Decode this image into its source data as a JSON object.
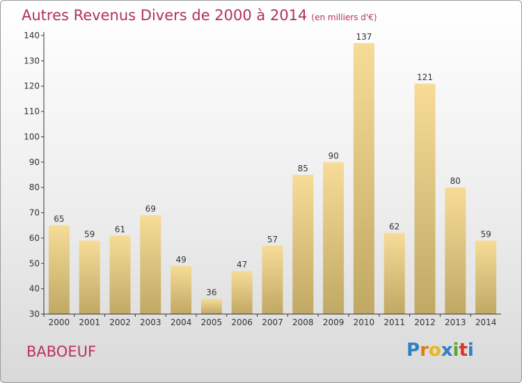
{
  "title": "Autres Revenus Divers de 2000 à 2014",
  "unit_note": "(en milliers d'€)",
  "place_name": "BABOEUF",
  "logo_text": "Proxiti",
  "colors": {
    "title": "#b03060",
    "bar_top": "#f6dc97",
    "bar_bottom": "#c0a865",
    "axis": "#333333"
  },
  "chart_data": {
    "type": "bar",
    "title": "Autres Revenus Divers de 2000 à 2014",
    "xlabel": "",
    "ylabel": "",
    "categories": [
      "2000",
      "2001",
      "2002",
      "2003",
      "2004",
      "2005",
      "2006",
      "2007",
      "2008",
      "2009",
      "2010",
      "2011",
      "2012",
      "2013",
      "2014"
    ],
    "values": [
      65,
      59,
      61,
      69,
      49,
      36,
      47,
      57,
      85,
      90,
      137,
      62,
      121,
      80,
      59
    ],
    "ylim": [
      30,
      140
    ],
    "yticks": [
      30,
      40,
      50,
      60,
      70,
      80,
      90,
      100,
      110,
      120,
      130,
      140
    ],
    "grid": false,
    "legend": "none"
  }
}
